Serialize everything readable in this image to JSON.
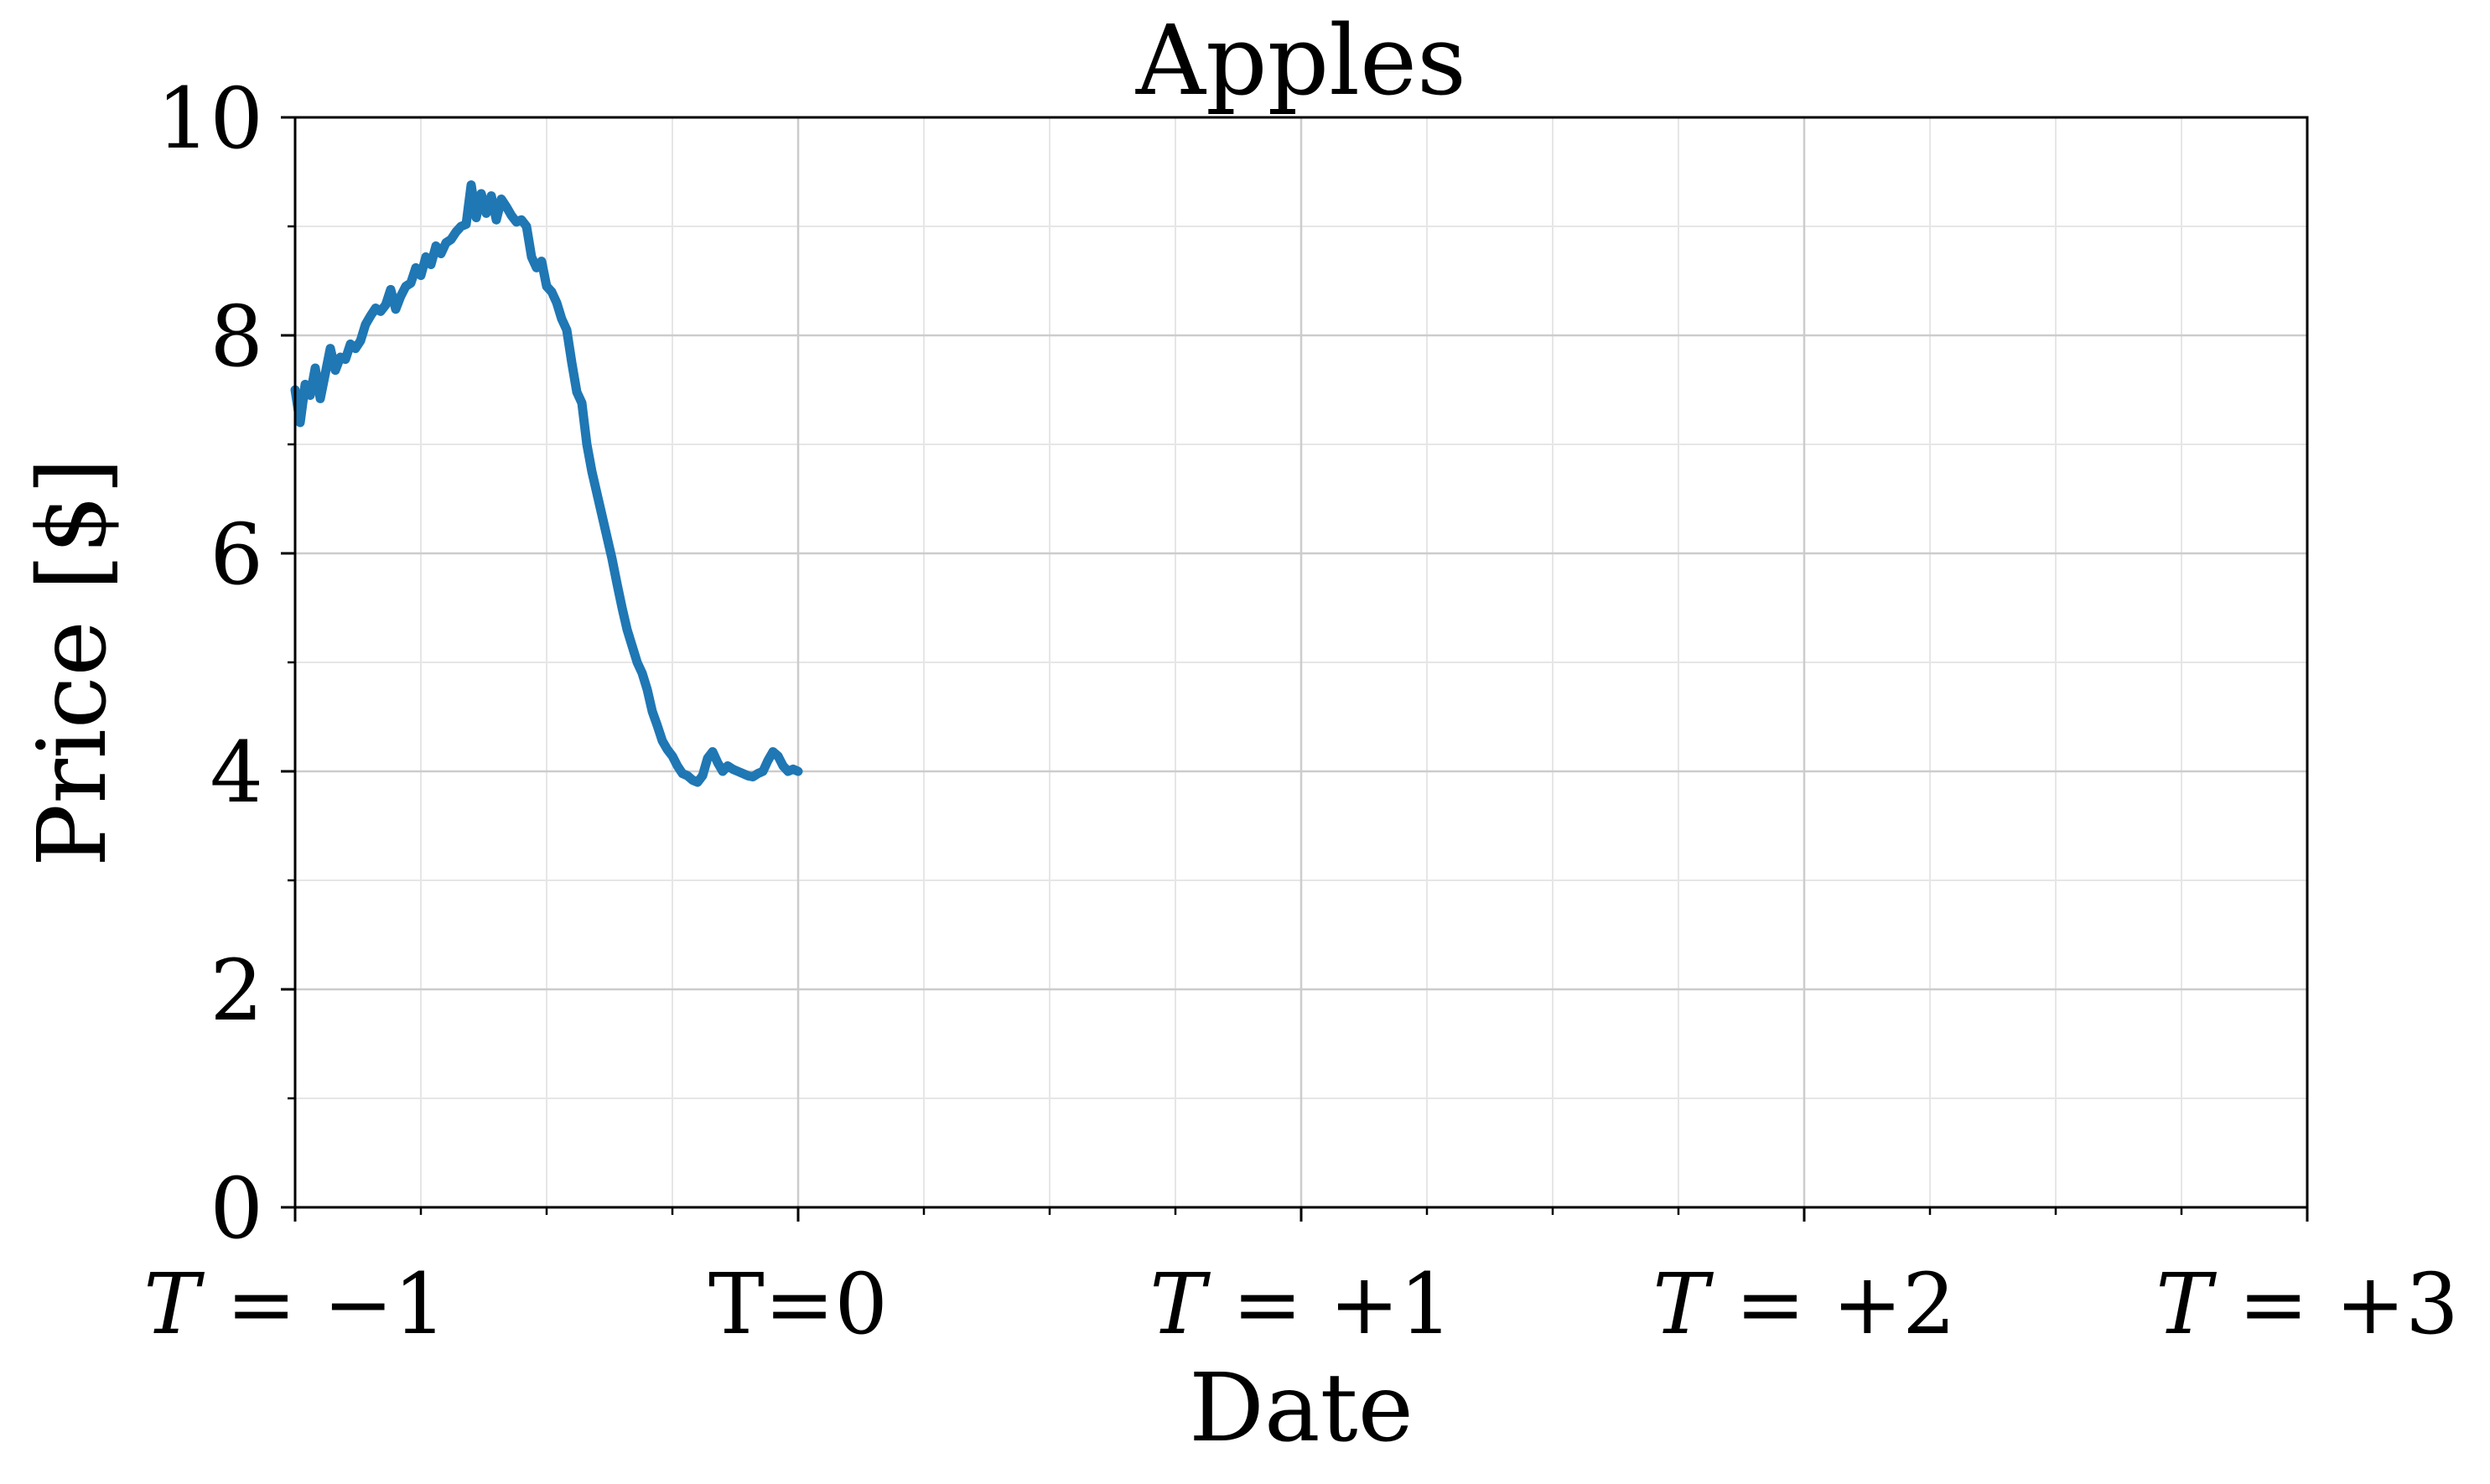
{
  "chart_data": {
    "type": "line",
    "title": "Apples",
    "xlabel": "Date",
    "ylabel": "Price [$]",
    "xlim": [
      -1,
      3
    ],
    "ylim": [
      0,
      10
    ],
    "grid": true,
    "x_ticks": [
      {
        "value": -1,
        "label": "T = −1",
        "lhs": "T",
        "rhs": "−1"
      },
      {
        "value": 0,
        "label": "T=0"
      },
      {
        "value": 1,
        "label": "T = +1",
        "lhs": "T",
        "rhs": "+1"
      },
      {
        "value": 2,
        "label": "T = +2",
        "lhs": "T",
        "rhs": "+2"
      },
      {
        "value": 3,
        "label": "T = +3",
        "lhs": "T",
        "rhs": "+3"
      }
    ],
    "y_ticks": [
      0,
      2,
      4,
      6,
      8,
      10
    ],
    "series": [
      {
        "color": "#1f77b4",
        "x": [
          -1.0,
          -0.99,
          -0.98,
          -0.97,
          -0.96,
          -0.95,
          -0.94,
          -0.93,
          -0.92,
          -0.91,
          -0.9,
          -0.89,
          -0.88,
          -0.87,
          -0.86,
          -0.85,
          -0.84,
          -0.83,
          -0.82,
          -0.81,
          -0.8,
          -0.79,
          -0.78,
          -0.77,
          -0.76,
          -0.75,
          -0.74,
          -0.73,
          -0.72,
          -0.71,
          -0.7,
          -0.69,
          -0.68,
          -0.67,
          -0.66,
          -0.65,
          -0.64,
          -0.63,
          -0.62,
          -0.61,
          -0.6,
          -0.59,
          -0.58,
          -0.57,
          -0.56,
          -0.55,
          -0.54,
          -0.53,
          -0.52,
          -0.51,
          -0.5,
          -0.49,
          -0.48,
          -0.47,
          -0.46,
          -0.45,
          -0.44,
          -0.43,
          -0.42,
          -0.41,
          -0.4,
          -0.39,
          -0.38,
          -0.37,
          -0.36,
          -0.35,
          -0.34,
          -0.33,
          -0.32,
          -0.31,
          -0.3,
          -0.29,
          -0.28,
          -0.27,
          -0.26,
          -0.25,
          -0.24,
          -0.23,
          -0.22,
          -0.21,
          -0.2,
          -0.19,
          -0.18,
          -0.17,
          -0.16,
          -0.15,
          -0.14,
          -0.13,
          -0.12,
          -0.11,
          -0.1,
          -0.09,
          -0.08,
          -0.07,
          -0.06,
          -0.05,
          -0.04,
          -0.03,
          -0.02,
          -0.01,
          0.0
        ],
        "y": [
          7.5,
          7.2,
          7.55,
          7.45,
          7.7,
          7.42,
          7.65,
          7.88,
          7.68,
          7.8,
          7.78,
          7.92,
          7.88,
          7.95,
          8.1,
          8.18,
          8.25,
          8.22,
          8.28,
          8.42,
          8.24,
          8.36,
          8.45,
          8.48,
          8.62,
          8.55,
          8.72,
          8.65,
          8.82,
          8.75,
          8.85,
          8.88,
          8.95,
          9.0,
          9.02,
          9.38,
          9.08,
          9.3,
          9.12,
          9.28,
          9.06,
          9.25,
          9.18,
          9.1,
          9.04,
          9.06,
          9.0,
          8.72,
          8.62,
          8.68,
          8.45,
          8.4,
          8.3,
          8.15,
          8.05,
          7.75,
          7.48,
          7.38,
          7.0,
          6.75,
          6.55,
          6.35,
          6.15,
          5.95,
          5.72,
          5.5,
          5.3,
          5.15,
          5.0,
          4.9,
          4.75,
          4.55,
          4.42,
          4.28,
          4.2,
          4.14,
          4.05,
          3.98,
          3.96,
          3.92,
          3.9,
          3.96,
          4.12,
          4.18,
          4.08,
          4.0,
          4.05,
          4.02,
          4.0,
          3.98,
          3.96,
          3.95,
          3.98,
          4.0,
          4.1,
          4.18,
          4.14,
          4.05,
          4.0,
          4.02,
          4.0
        ]
      }
    ]
  }
}
